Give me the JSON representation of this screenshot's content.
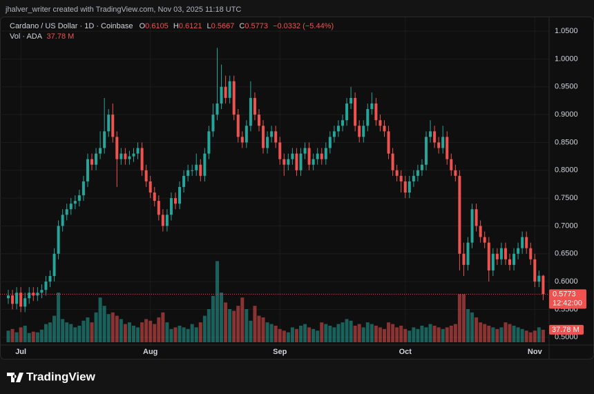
{
  "watermark": "jhalver_writer created with TradingView.com, Nov 03, 2025 11:18 UTC",
  "brand": "TradingView",
  "chart_data": {
    "type": "candlestick",
    "title": "Cardano / US Dollar · 1D · Coinbase",
    "ohlc_labels": [
      "O",
      "H",
      "L",
      "C"
    ],
    "change_label": "−0.0332 (−5.44%)",
    "volume_title": "Vol · ADA",
    "volume_label": "37.78 M",
    "countdown": "12:42:00",
    "up_color": "#26a69a",
    "down_color": "#ef5350",
    "grid": true,
    "ylim": [
      0.486,
      1.075
    ],
    "yticks": [
      {
        "value": 0.5,
        "label": "0.5000"
      },
      {
        "value": 0.55,
        "label": "0.5500"
      },
      {
        "value": 0.6,
        "label": "0.6000"
      },
      {
        "value": 0.65,
        "label": "0.6500"
      },
      {
        "value": 0.7,
        "label": "0.7000"
      },
      {
        "value": 0.75,
        "label": "0.7500"
      },
      {
        "value": 0.8,
        "label": "0.8000"
      },
      {
        "value": 0.85,
        "label": "0.8500"
      },
      {
        "value": 0.9,
        "label": "0.9000"
      },
      {
        "value": 0.95,
        "label": "0.9500"
      },
      {
        "value": 1.0,
        "label": "1.0000"
      },
      {
        "value": 1.05,
        "label": "1.0500"
      }
    ],
    "volume_lim": [
      0,
      300
    ],
    "categories": [
      null,
      null,
      null,
      "Jul",
      null,
      null,
      null,
      null,
      null,
      null,
      null,
      null,
      null,
      null,
      null,
      null,
      null,
      null,
      null,
      null,
      null,
      null,
      null,
      null,
      null,
      null,
      null,
      null,
      null,
      null,
      null,
      null,
      null,
      null,
      "Aug",
      null,
      null,
      null,
      null,
      null,
      null,
      null,
      null,
      null,
      null,
      null,
      null,
      null,
      null,
      null,
      null,
      null,
      null,
      null,
      null,
      null,
      null,
      null,
      null,
      null,
      null,
      null,
      null,
      null,
      null,
      "Sep",
      null,
      null,
      null,
      null,
      null,
      null,
      null,
      null,
      null,
      null,
      null,
      null,
      null,
      null,
      null,
      null,
      null,
      null,
      null,
      null,
      null,
      null,
      null,
      null,
      null,
      null,
      null,
      null,
      null,
      "Oct",
      null,
      null,
      null,
      null,
      null,
      null,
      null,
      null,
      null,
      null,
      null,
      null,
      null,
      null,
      null,
      null,
      null,
      null,
      null,
      null,
      null,
      null,
      null,
      null,
      null,
      null,
      null,
      null,
      null,
      null,
      "Nov",
      null,
      null
    ],
    "open": [
      0.57,
      0.575,
      0.56,
      0.58,
      0.555,
      0.57,
      0.58,
      0.575,
      0.58,
      0.585,
      0.6,
      0.61,
      0.65,
      0.7,
      0.72,
      0.73,
      0.74,
      0.745,
      0.755,
      0.78,
      0.82,
      0.81,
      0.83,
      0.84,
      0.87,
      0.9,
      0.86,
      0.82,
      0.83,
      0.82,
      0.825,
      0.83,
      0.84,
      0.8,
      0.78,
      0.76,
      0.745,
      0.72,
      0.7,
      0.72,
      0.75,
      0.74,
      0.77,
      0.79,
      0.8,
      0.8,
      0.81,
      0.79,
      0.83,
      0.87,
      0.9,
      0.92,
      0.95,
      0.93,
      0.96,
      0.9,
      0.86,
      0.85,
      0.88,
      0.93,
      0.9,
      0.88,
      0.84,
      0.86,
      0.87,
      0.85,
      0.82,
      0.81,
      0.82,
      0.83,
      0.8,
      0.83,
      0.84,
      0.81,
      0.82,
      0.83,
      0.82,
      0.84,
      0.86,
      0.87,
      0.88,
      0.89,
      0.92,
      0.93,
      0.88,
      0.86,
      0.88,
      0.91,
      0.92,
      0.89,
      0.88,
      0.87,
      0.83,
      0.8,
      0.79,
      0.78,
      0.76,
      0.78,
      0.79,
      0.8,
      0.81,
      0.86,
      0.87,
      0.85,
      0.84,
      0.86,
      0.82,
      0.8,
      0.79,
      0.65,
      0.63,
      0.67,
      0.73,
      0.7,
      0.68,
      0.67,
      0.62,
      0.65,
      0.64,
      0.66,
      0.64,
      0.63,
      0.65,
      0.66,
      0.68,
      0.66,
      0.64,
      0.6,
      0.6105
    ],
    "high": [
      0.585,
      0.585,
      0.59,
      0.59,
      0.58,
      0.59,
      0.59,
      0.59,
      0.595,
      0.61,
      0.62,
      0.66,
      0.71,
      0.73,
      0.74,
      0.75,
      0.755,
      0.765,
      0.79,
      0.83,
      0.83,
      0.84,
      0.87,
      0.93,
      0.91,
      0.92,
      0.87,
      0.84,
      0.84,
      0.835,
      0.84,
      0.85,
      0.85,
      0.81,
      0.79,
      0.77,
      0.755,
      0.73,
      0.73,
      0.76,
      0.76,
      0.78,
      0.8,
      0.81,
      0.81,
      0.83,
      0.82,
      0.84,
      0.88,
      0.92,
      1.02,
      0.99,
      0.97,
      0.97,
      0.97,
      0.91,
      0.87,
      0.89,
      0.96,
      0.94,
      0.91,
      0.89,
      0.87,
      0.88,
      0.88,
      0.86,
      0.83,
      0.83,
      0.84,
      0.84,
      0.84,
      0.85,
      0.85,
      0.83,
      0.84,
      0.84,
      0.85,
      0.87,
      0.88,
      0.89,
      0.9,
      0.93,
      0.95,
      0.94,
      0.89,
      0.89,
      0.92,
      0.94,
      0.93,
      0.9,
      0.89,
      0.88,
      0.84,
      0.81,
      0.8,
      0.79,
      0.79,
      0.8,
      0.81,
      0.82,
      0.87,
      0.89,
      0.88,
      0.86,
      0.88,
      0.87,
      0.83,
      0.81,
      0.8,
      0.67,
      0.68,
      0.74,
      0.74,
      0.71,
      0.69,
      0.68,
      0.66,
      0.66,
      0.67,
      0.67,
      0.65,
      0.66,
      0.67,
      0.69,
      0.69,
      0.67,
      0.65,
      0.62,
      0.6121
    ],
    "low": [
      0.56,
      0.55,
      0.55,
      0.545,
      0.545,
      0.56,
      0.565,
      0.565,
      0.57,
      0.575,
      0.59,
      0.6,
      0.64,
      0.69,
      0.71,
      0.72,
      0.73,
      0.735,
      0.745,
      0.77,
      0.8,
      0.8,
      0.82,
      0.83,
      0.86,
      0.85,
      0.77,
      0.81,
      0.81,
      0.81,
      0.815,
      0.82,
      0.79,
      0.77,
      0.75,
      0.735,
      0.71,
      0.69,
      0.69,
      0.71,
      0.73,
      0.73,
      0.76,
      0.78,
      0.79,
      0.79,
      0.78,
      0.78,
      0.82,
      0.86,
      0.89,
      0.91,
      0.92,
      0.92,
      0.89,
      0.85,
      0.84,
      0.84,
      0.87,
      0.89,
      0.87,
      0.83,
      0.83,
      0.85,
      0.84,
      0.81,
      0.79,
      0.8,
      0.81,
      0.79,
      0.79,
      0.82,
      0.8,
      0.8,
      0.81,
      0.81,
      0.81,
      0.83,
      0.85,
      0.86,
      0.87,
      0.88,
      0.91,
      0.87,
      0.85,
      0.85,
      0.87,
      0.9,
      0.88,
      0.87,
      0.86,
      0.82,
      0.79,
      0.78,
      0.76,
      0.75,
      0.75,
      0.77,
      0.78,
      0.79,
      0.8,
      0.85,
      0.84,
      0.83,
      0.83,
      0.81,
      0.79,
      0.78,
      0.62,
      0.61,
      0.62,
      0.66,
      0.69,
      0.67,
      0.66,
      0.6,
      0.61,
      0.63,
      0.63,
      0.63,
      0.62,
      0.62,
      0.64,
      0.65,
      0.65,
      0.63,
      0.59,
      0.59,
      0.5667
    ],
    "close": [
      0.575,
      0.56,
      0.58,
      0.555,
      0.57,
      0.58,
      0.575,
      0.58,
      0.585,
      0.6,
      0.61,
      0.65,
      0.7,
      0.72,
      0.73,
      0.74,
      0.745,
      0.755,
      0.78,
      0.82,
      0.81,
      0.83,
      0.84,
      0.87,
      0.9,
      0.86,
      0.82,
      0.83,
      0.82,
      0.825,
      0.83,
      0.84,
      0.8,
      0.78,
      0.76,
      0.745,
      0.72,
      0.7,
      0.72,
      0.75,
      0.74,
      0.77,
      0.79,
      0.8,
      0.8,
      0.81,
      0.79,
      0.83,
      0.87,
      0.9,
      0.92,
      0.95,
      0.93,
      0.96,
      0.9,
      0.86,
      0.85,
      0.88,
      0.93,
      0.9,
      0.88,
      0.84,
      0.86,
      0.87,
      0.85,
      0.82,
      0.81,
      0.82,
      0.83,
      0.8,
      0.83,
      0.84,
      0.81,
      0.82,
      0.83,
      0.82,
      0.84,
      0.86,
      0.87,
      0.88,
      0.89,
      0.92,
      0.93,
      0.88,
      0.86,
      0.88,
      0.91,
      0.92,
      0.89,
      0.88,
      0.87,
      0.83,
      0.8,
      0.79,
      0.78,
      0.76,
      0.78,
      0.79,
      0.8,
      0.81,
      0.86,
      0.87,
      0.85,
      0.84,
      0.86,
      0.82,
      0.8,
      0.79,
      0.65,
      0.63,
      0.67,
      0.73,
      0.7,
      0.68,
      0.67,
      0.62,
      0.65,
      0.64,
      0.66,
      0.64,
      0.63,
      0.65,
      0.66,
      0.68,
      0.66,
      0.64,
      0.6,
      0.6105,
      0.5773
    ],
    "volume": [
      35,
      40,
      30,
      45,
      50,
      28,
      32,
      30,
      38,
      55,
      60,
      80,
      150,
      70,
      60,
      55,
      45,
      50,
      65,
      75,
      60,
      90,
      135,
      110,
      85,
      90,
      80,
      70,
      55,
      60,
      50,
      45,
      60,
      70,
      65,
      55,
      75,
      90,
      60,
      40,
      45,
      50,
      45,
      40,
      55,
      45,
      60,
      80,
      100,
      140,
      245,
      150,
      120,
      100,
      95,
      110,
      135,
      100,
      65,
      110,
      80,
      75,
      60,
      55,
      50,
      40,
      35,
      30,
      45,
      40,
      50,
      55,
      45,
      40,
      35,
      60,
      55,
      50,
      45,
      55,
      60,
      70,
      65,
      50,
      55,
      45,
      60,
      55,
      50,
      45,
      40,
      60,
      55,
      45,
      50,
      40,
      35,
      45,
      40,
      50,
      45,
      55,
      50,
      45,
      40,
      45,
      50,
      55,
      145,
      145,
      100,
      90,
      75,
      60,
      55,
      50,
      45,
      40,
      45,
      60,
      55,
      50,
      45,
      40,
      35,
      30,
      35,
      45,
      37.78
    ]
  }
}
